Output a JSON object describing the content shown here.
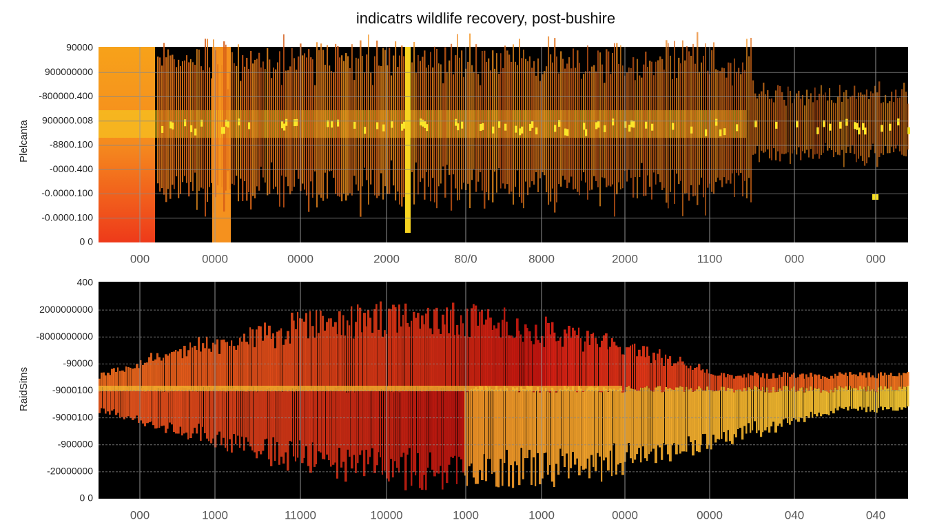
{
  "title": "indicatrs wildlife recovery, post-bushire",
  "panels": [
    {
      "y_label": "Plelcanta",
      "y_ticks": [
        "90000",
        "900000000",
        "-800000.400",
        "900000.008",
        "-8800.100",
        "-0000.400",
        "-0.0000.100",
        "-0.0000.100",
        "0 0"
      ],
      "x_ticks": [
        "000",
        "0000",
        "0000",
        "2000",
        "80/0",
        "8000",
        "2000",
        "1100",
        "000",
        "000"
      ]
    },
    {
      "y_label": "RaidSitns",
      "y_ticks": [
        "400",
        "2000000000",
        "-8000000000",
        "-90000",
        "-9000100",
        "-9000100",
        "-900000",
        "-20000000",
        "0 0"
      ],
      "x_ticks": [
        "000",
        "1000",
        "11000",
        "10000",
        "1000",
        "1000",
        "0000",
        "0000",
        "040",
        "040"
      ]
    }
  ]
}
